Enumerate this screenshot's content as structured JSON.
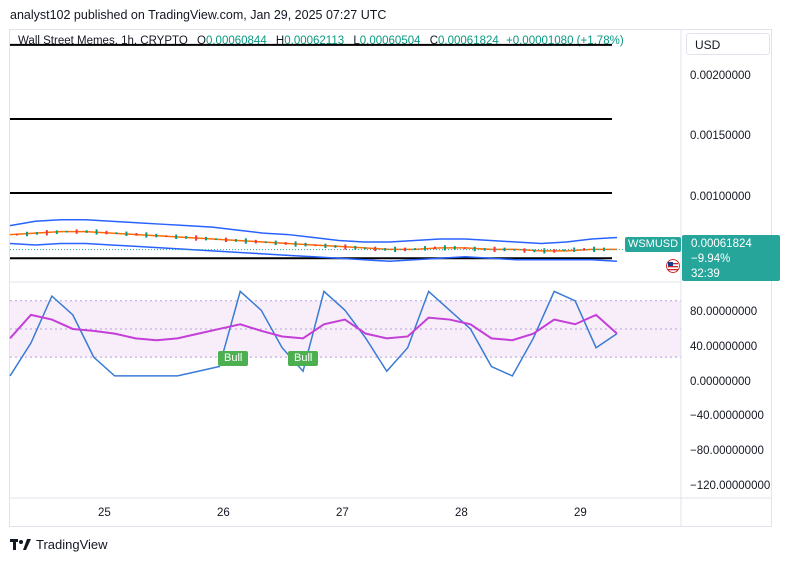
{
  "header": {
    "publisher_line": "analyst102 published on TradingView.com, Jan 29, 2025 07:27 UTC"
  },
  "ohlc": {
    "symbol_line": "Wall Street Memes, 1h, CRYPTO",
    "open_key": "O",
    "open": "0.00060844",
    "high_key": "H",
    "high": "0.00062113",
    "low_key": "L",
    "low": "0.00060504",
    "close_key": "C",
    "close": "0.00061824",
    "change": "+0.00001080 (+1.78%)"
  },
  "currency_button": "USD",
  "price_tag": {
    "symbol": "WSMUSD",
    "price": "0.00061824",
    "change_pct": "−9.94%",
    "countdown": "32:39"
  },
  "footer": {
    "brand": "TradingView"
  },
  "colors": {
    "up": "#089981",
    "down": "#f23645",
    "tag": "#26a69a",
    "bollinger": "#2962ff",
    "basis": "#ff6d00",
    "stoch_k": "#3a7bd5",
    "stoch_d": "#c43fd8",
    "bull_label": "#4caf50"
  },
  "chart_data": [
    {
      "type": "line",
      "pane": "price",
      "y_axis_ticks": [
        "0.00200000",
        "0.00150000",
        "0.00100000"
      ],
      "ylim": [
        0.0004,
        0.0021
      ],
      "x_ticks": [
        "25",
        "26",
        "27",
        "28",
        "29"
      ],
      "horizontal_levels": [
        0.002,
        0.0015,
        0.001,
        0.00056
      ],
      "series": [
        {
          "values": [
            0.00072,
            0.00073,
            0.00074,
            0.00074,
            0.00073,
            0.00072,
            0.00071,
            0.0007,
            0.00069,
            0.00068,
            0.00067,
            0.00066,
            0.00065,
            0.00064,
            0.00063,
            0.00062,
            0.00062,
            0.00063,
            0.00063,
            0.00062,
            0.00062,
            0.00061,
            0.00061,
            0.00062,
            0.00062
          ]
        },
        {
          "values": [
            0.00078,
            0.00081,
            0.00082,
            0.00082,
            0.00081,
            0.0008,
            0.00079,
            0.00078,
            0.00077,
            0.00075,
            0.00073,
            0.00072,
            0.0007,
            0.00068,
            0.00067,
            0.00067,
            0.00068,
            0.00069,
            0.00069,
            0.00068,
            0.00067,
            0.00066,
            0.00067,
            0.00069,
            0.0007
          ]
        },
        {
          "values": [
            0.00066,
            0.00065,
            0.00066,
            0.00066,
            0.00065,
            0.00064,
            0.00063,
            0.00062,
            0.00061,
            0.0006,
            0.00059,
            0.00058,
            0.00057,
            0.00056,
            0.00055,
            0.00054,
            0.00055,
            0.00056,
            0.00057,
            0.00056,
            0.00055,
            0.00055,
            0.00055,
            0.00055,
            0.00054
          ]
        }
      ],
      "price_line": 0.00061824
    },
    {
      "type": "line",
      "pane": "stochastic",
      "y_axis_ticks": [
        "80.00000000",
        "40.00000000",
        "0.00000000",
        "−40.00000000",
        "−80.00000000",
        "−120.00000000"
      ],
      "ylim": [
        -130,
        100
      ],
      "band_levels": [
        80,
        50,
        20
      ],
      "bull_labels": [
        "Bull",
        "Bull"
      ],
      "series": [
        {
          "values": [
            0,
            35,
            85,
            65,
            20,
            0,
            0,
            0,
            0,
            5,
            10,
            90,
            70,
            30,
            5,
            90,
            70,
            40,
            5,
            30,
            90,
            70,
            50,
            10,
            0,
            40,
            90,
            80,
            30,
            45
          ]
        },
        {
          "values": [
            40,
            65,
            60,
            50,
            48,
            45,
            40,
            38,
            40,
            45,
            50,
            55,
            48,
            42,
            40,
            55,
            60,
            45,
            40,
            42,
            62,
            60,
            55,
            40,
            38,
            45,
            60,
            55,
            65,
            45
          ]
        }
      ]
    }
  ]
}
